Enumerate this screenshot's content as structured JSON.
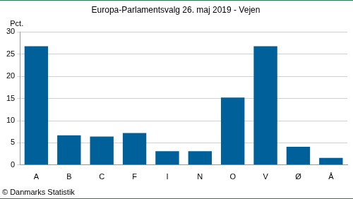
{
  "chart_data": {
    "type": "bar",
    "title": "Europa-Parlamentsvalg 26. maj 2019 - Vejen",
    "ylabel": "Pct.",
    "source": "© Danmarks Statistik",
    "categories": [
      "A",
      "B",
      "C",
      "F",
      "I",
      "N",
      "O",
      "V",
      "Ø",
      "Å"
    ],
    "values": [
      26.8,
      6.7,
      6.4,
      7.2,
      3.1,
      3.1,
      15.2,
      26.8,
      4.1,
      1.6
    ],
    "color": "#00609a",
    "ylim": [
      0,
      30
    ],
    "yticks": [
      0,
      5,
      10,
      15,
      20,
      25,
      30
    ],
    "grid": true
  }
}
